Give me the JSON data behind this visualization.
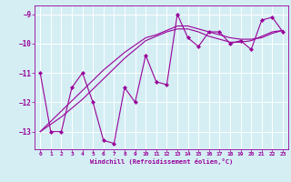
{
  "x": [
    0,
    1,
    2,
    3,
    4,
    5,
    6,
    7,
    8,
    9,
    10,
    11,
    12,
    13,
    14,
    15,
    16,
    17,
    18,
    19,
    20,
    21,
    22,
    23
  ],
  "y_main": [
    -11.0,
    -13.0,
    -13.0,
    -11.5,
    -11.0,
    -12.0,
    -13.3,
    -13.4,
    -11.5,
    -12.0,
    -10.4,
    -11.3,
    -11.4,
    -9.0,
    -9.8,
    -10.1,
    -9.6,
    -9.6,
    -10.0,
    -9.9,
    -10.2,
    -9.2,
    -9.1,
    -9.6
  ],
  "y_trend1": [
    -13.0,
    -12.65,
    -12.3,
    -11.95,
    -11.6,
    -11.25,
    -10.9,
    -10.6,
    -10.3,
    -10.05,
    -9.8,
    -9.7,
    -9.55,
    -9.4,
    -9.4,
    -9.5,
    -9.6,
    -9.7,
    -9.8,
    -9.85,
    -9.85,
    -9.8,
    -9.65,
    -9.55
  ],
  "y_trend2": [
    -13.0,
    -12.75,
    -12.5,
    -12.2,
    -11.9,
    -11.55,
    -11.2,
    -10.85,
    -10.5,
    -10.2,
    -9.9,
    -9.75,
    -9.6,
    -9.5,
    -9.5,
    -9.6,
    -9.75,
    -9.85,
    -9.95,
    -9.95,
    -9.9,
    -9.75,
    -9.6,
    -9.55
  ],
  "line_color": "#990099",
  "bg_color": "#d4eef4",
  "grid_color": "#ffffff",
  "xlabel": "Windchill (Refroidissement éolien,°C)",
  "ylim": [
    -13.6,
    -8.7
  ],
  "xlim": [
    -0.5,
    23.5
  ],
  "yticks": [
    -13,
    -12,
    -11,
    -10,
    -9
  ],
  "xticks": [
    0,
    1,
    2,
    3,
    4,
    5,
    6,
    7,
    8,
    9,
    10,
    11,
    12,
    13,
    14,
    15,
    16,
    17,
    18,
    19,
    20,
    21,
    22,
    23
  ],
  "marker": "D",
  "markersize": 2.2,
  "linewidth": 0.8
}
